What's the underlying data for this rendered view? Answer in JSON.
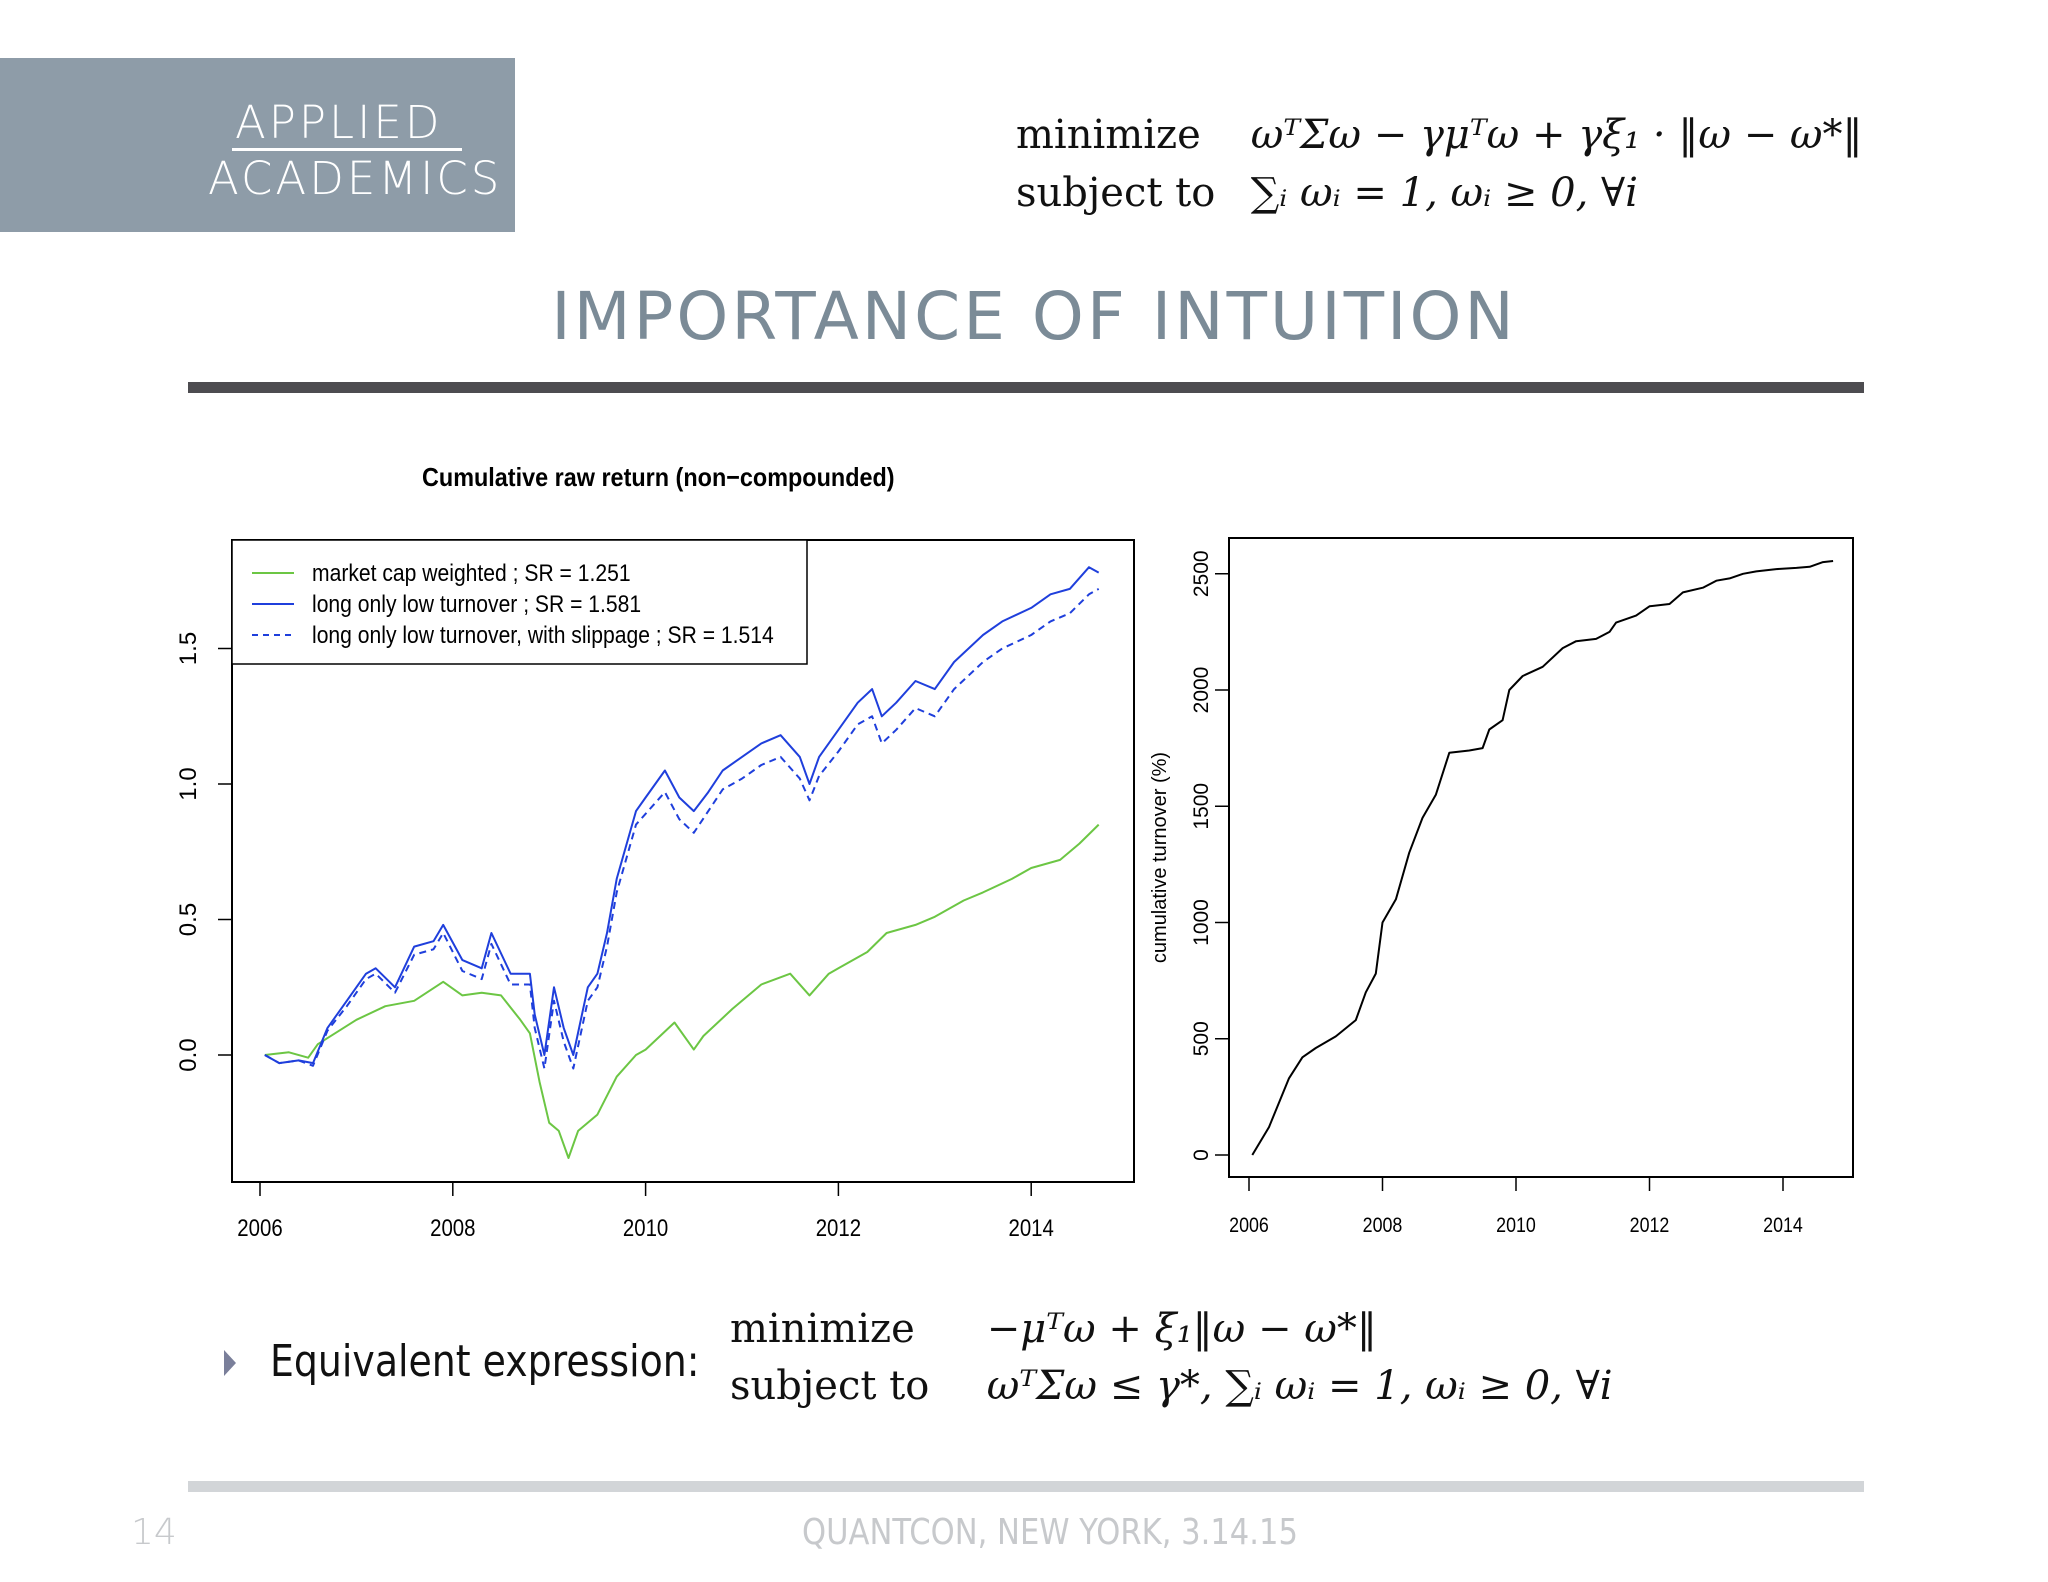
{
  "logo": {
    "line1": "APPLIED",
    "line2": "ACADEMICS"
  },
  "top_formula": {
    "row1_label": "minimize",
    "row1_expr": "ωᵀΣω − γμᵀω + γξ₁ · ‖ω − ω*‖",
    "row2_label": "subject to",
    "row2_expr": "∑ᵢ ωᵢ = 1,  ωᵢ ≥ 0, ∀i"
  },
  "slide_title": "IMPORTANCE OF INTUITION",
  "bullet": {
    "label": "Equivalent expression:",
    "row1_label": "minimize",
    "row1_expr": "−μᵀω + ξ₁‖ω − ω*‖",
    "row2_label": "subject to",
    "row2_expr": "ωᵀΣω ≤ γ*,  ∑ᵢ ωᵢ = 1,  ωᵢ ≥ 0, ∀i"
  },
  "footer": {
    "page_number": "14",
    "conference": "QUANTCON, NEW YORK, 3.14.15"
  },
  "chart_data": [
    {
      "type": "line",
      "title": "Cumulative raw return (non−compounded)",
      "xlabel": "",
      "ylabel": "",
      "xlim": [
        2005.9,
        2015.0
      ],
      "ylim": [
        -0.47,
        1.9
      ],
      "x_ticks": [
        "2006",
        "2008",
        "2010",
        "2012",
        "2014"
      ],
      "y_ticks": [
        "0.0",
        "0.5",
        "1.0",
        "1.5"
      ],
      "grid": false,
      "legend_position": "top-left",
      "series": [
        {
          "name": "market cap weighted ; SR = 1.251",
          "color": "#6cc644",
          "style": "solid",
          "x": [
            2006.05,
            2006.3,
            2006.5,
            2006.6,
            2007.0,
            2007.3,
            2007.6,
            2007.9,
            2008.1,
            2008.3,
            2008.5,
            2008.7,
            2008.8,
            2008.9,
            2009.0,
            2009.1,
            2009.2,
            2009.3,
            2009.5,
            2009.7,
            2009.9,
            2010.0,
            2010.3,
            2010.5,
            2010.6,
            2010.9,
            2011.2,
            2011.5,
            2011.7,
            2011.9,
            2012.0,
            2012.3,
            2012.5,
            2012.8,
            2013.0,
            2013.3,
            2013.5,
            2013.8,
            2014.0,
            2014.3,
            2014.5,
            2014.7
          ],
          "values": [
            0.0,
            0.01,
            -0.01,
            0.04,
            0.13,
            0.18,
            0.2,
            0.27,
            0.22,
            0.23,
            0.22,
            0.13,
            0.08,
            -0.1,
            -0.25,
            -0.28,
            -0.38,
            -0.28,
            -0.22,
            -0.08,
            0.0,
            0.02,
            0.12,
            0.02,
            0.07,
            0.17,
            0.26,
            0.3,
            0.22,
            0.3,
            0.32,
            0.38,
            0.45,
            0.48,
            0.51,
            0.57,
            0.6,
            0.65,
            0.69,
            0.72,
            0.78,
            0.85
          ]
        },
        {
          "name": "long only low turnover ; SR = 1.581",
          "color": "#1f3fdc",
          "style": "solid",
          "x": [
            2006.05,
            2006.2,
            2006.4,
            2006.55,
            2006.7,
            2006.9,
            2007.1,
            2007.2,
            2007.4,
            2007.6,
            2007.8,
            2007.9,
            2008.1,
            2008.3,
            2008.4,
            2008.6,
            2008.8,
            2008.85,
            2008.95,
            2009.05,
            2009.15,
            2009.25,
            2009.4,
            2009.5,
            2009.6,
            2009.7,
            2009.9,
            2010.0,
            2010.2,
            2010.35,
            2010.5,
            2010.65,
            2010.8,
            2011.0,
            2011.2,
            2011.4,
            2011.6,
            2011.7,
            2011.8,
            2012.0,
            2012.2,
            2012.35,
            2012.45,
            2012.6,
            2012.8,
            2013.0,
            2013.2,
            2013.5,
            2013.7,
            2014.0,
            2014.2,
            2014.4,
            2014.6,
            2014.7
          ],
          "values": [
            0.0,
            -0.03,
            -0.02,
            -0.03,
            0.1,
            0.2,
            0.3,
            0.32,
            0.25,
            0.4,
            0.42,
            0.48,
            0.35,
            0.32,
            0.45,
            0.3,
            0.3,
            0.15,
            0.0,
            0.25,
            0.1,
            0.0,
            0.25,
            0.3,
            0.45,
            0.65,
            0.9,
            0.95,
            1.05,
            0.95,
            0.9,
            0.97,
            1.05,
            1.1,
            1.15,
            1.18,
            1.1,
            1.0,
            1.1,
            1.2,
            1.3,
            1.35,
            1.25,
            1.3,
            1.38,
            1.35,
            1.45,
            1.55,
            1.6,
            1.65,
            1.7,
            1.72,
            1.8,
            1.78
          ]
        },
        {
          "name": "long only low turnover, with slippage ; SR = 1.514",
          "color": "#1f3fdc",
          "style": "dashed",
          "x": [
            2006.05,
            2006.2,
            2006.4,
            2006.55,
            2006.7,
            2006.9,
            2007.1,
            2007.2,
            2007.4,
            2007.6,
            2007.8,
            2007.9,
            2008.1,
            2008.3,
            2008.4,
            2008.6,
            2008.8,
            2008.85,
            2008.95,
            2009.05,
            2009.15,
            2009.25,
            2009.4,
            2009.5,
            2009.6,
            2009.7,
            2009.9,
            2010.0,
            2010.2,
            2010.35,
            2010.5,
            2010.65,
            2010.8,
            2011.0,
            2011.2,
            2011.4,
            2011.6,
            2011.7,
            2011.8,
            2012.0,
            2012.2,
            2012.35,
            2012.45,
            2012.6,
            2012.8,
            2013.0,
            2013.2,
            2013.5,
            2013.7,
            2014.0,
            2014.2,
            2014.4,
            2014.6,
            2014.7
          ],
          "values": [
            0.0,
            -0.03,
            -0.02,
            -0.04,
            0.09,
            0.18,
            0.28,
            0.3,
            0.23,
            0.37,
            0.39,
            0.45,
            0.31,
            0.28,
            0.41,
            0.26,
            0.26,
            0.1,
            -0.05,
            0.2,
            0.05,
            -0.05,
            0.2,
            0.25,
            0.4,
            0.6,
            0.85,
            0.89,
            0.97,
            0.87,
            0.82,
            0.9,
            0.98,
            1.02,
            1.07,
            1.1,
            1.02,
            0.94,
            1.03,
            1.12,
            1.22,
            1.25,
            1.15,
            1.2,
            1.28,
            1.25,
            1.35,
            1.45,
            1.5,
            1.55,
            1.6,
            1.63,
            1.7,
            1.72
          ]
        }
      ]
    },
    {
      "type": "line",
      "title": "",
      "xlabel": "",
      "ylabel": "cumulative turnover (%)",
      "xlim": [
        2005.85,
        2015.1
      ],
      "ylim": [
        -100,
        2650
      ],
      "x_ticks": [
        "2006",
        "2008",
        "2010",
        "2012",
        "2014"
      ],
      "y_ticks": [
        "0",
        "500",
        "1000",
        "1500",
        "2000",
        "2500"
      ],
      "grid": false,
      "series": [
        {
          "name": "cumulative turnover",
          "color": "#000000",
          "style": "solid",
          "x": [
            2006.05,
            2006.3,
            2006.6,
            2006.8,
            2007.0,
            2007.3,
            2007.6,
            2007.75,
            2007.9,
            2008.0,
            2008.2,
            2008.4,
            2008.6,
            2008.8,
            2009.0,
            2009.3,
            2009.5,
            2009.6,
            2009.8,
            2009.9,
            2010.1,
            2010.4,
            2010.7,
            2010.9,
            2011.2,
            2011.4,
            2011.5,
            2011.8,
            2012.0,
            2012.3,
            2012.5,
            2012.8,
            2013.0,
            2013.2,
            2013.4,
            2013.6,
            2013.9,
            2014.2,
            2014.4,
            2014.6,
            2014.75
          ],
          "values": [
            0,
            120,
            330,
            420,
            460,
            510,
            580,
            700,
            780,
            1000,
            1100,
            1300,
            1450,
            1550,
            1730,
            1740,
            1750,
            1830,
            1870,
            2000,
            2060,
            2100,
            2180,
            2210,
            2220,
            2250,
            2290,
            2320,
            2360,
            2370,
            2420,
            2440,
            2470,
            2480,
            2500,
            2510,
            2520,
            2525,
            2530,
            2550,
            2555
          ]
        }
      ]
    }
  ]
}
